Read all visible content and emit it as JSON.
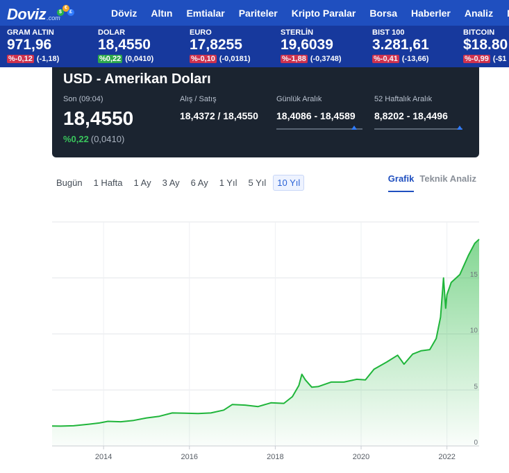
{
  "nav": {
    "logo": "Doviz",
    "logo_sub": ".com",
    "items": [
      "Döviz",
      "Altın",
      "Emtialar",
      "Pariteler",
      "Kripto Paralar",
      "Borsa",
      "Haberler",
      "Analiz",
      "M"
    ]
  },
  "ticker": [
    {
      "name": "GRAM ALTIN",
      "value": "971,96",
      "pct": "%-0,12",
      "abs": "(-1,18)",
      "dir": "neg"
    },
    {
      "name": "DOLAR",
      "value": "18,4550",
      "pct": "%0,22",
      "abs": "(0,0410)",
      "dir": "pos"
    },
    {
      "name": "EURO",
      "value": "17,8255",
      "pct": "%-0,10",
      "abs": "(-0,0181)",
      "dir": "neg"
    },
    {
      "name": "STERLİN",
      "value": "19,6039",
      "pct": "%-1,88",
      "abs": "(-0,3748)",
      "dir": "neg"
    },
    {
      "name": "BIST 100",
      "value": "3.281,61",
      "pct": "%-0,41",
      "abs": "(-13,66)",
      "dir": "neg"
    },
    {
      "name": "BITCOIN",
      "value": "$18.80",
      "pct": "%-0,99",
      "abs": "(-$1",
      "dir": "neg"
    }
  ],
  "card": {
    "title": "USD - Amerikan Doları",
    "last_label": "Son (09:04)",
    "last_value": "18,4550",
    "change_pct": "%0,22",
    "change_abs": "(0,0410)",
    "bidask_label": "Alış / Satış",
    "bidask_value": "18,4372 / 18,4550",
    "daily_label": "Günlük Aralık",
    "daily_value": "18,4086 - 18,4589",
    "weekly_label": "52 Haftalık Aralık",
    "weekly_value": "8,8202 - 18,4496",
    "daily_marker": 0.9,
    "weekly_marker": 0.97
  },
  "periods": {
    "items": [
      "Bugün",
      "1 Hafta",
      "1 Ay",
      "3 Ay",
      "6 Ay",
      "1 Yıl",
      "5 Yıl",
      "10 Yıl"
    ],
    "active": "10 Yıl"
  },
  "view_tabs": {
    "items": [
      "Grafik",
      "Teknik Analiz"
    ],
    "active": "Grafik"
  },
  "colors": {
    "nav_bg": "#1f4fbf",
    "ticker_bg": "#17399d",
    "card_bg": "#1b2430",
    "line": "#1fb53a",
    "negative": "#d9324a",
    "positive": "#2da84c"
  },
  "chart_data": {
    "type": "area",
    "title": "",
    "xlabel": "",
    "ylabel": "",
    "xlim": [
      2012.8,
      2022.75
    ],
    "ylim": [
      0,
      20
    ],
    "x_ticks": [
      2014,
      2016,
      2018,
      2020,
      2022
    ],
    "y_ticks": [
      0,
      5,
      10,
      15
    ],
    "grid": true,
    "series": [
      {
        "x": [
          2012.8,
          2013.0,
          2013.3,
          2013.6,
          2013.9,
          2014.1,
          2014.4,
          2014.7,
          2015.0,
          2015.3,
          2015.6,
          2015.9,
          2016.2,
          2016.5,
          2016.8,
          2017.0,
          2017.3,
          2017.6,
          2017.9,
          2018.2,
          2018.4,
          2018.55,
          2018.62,
          2018.7,
          2018.85,
          2019.0,
          2019.3,
          2019.6,
          2019.9,
          2020.1,
          2020.3,
          2020.6,
          2020.85,
          2021.0,
          2021.2,
          2021.4,
          2021.6,
          2021.75,
          2021.85,
          2021.92,
          2021.97,
          2022.0,
          2022.1,
          2022.3,
          2022.5,
          2022.65,
          2022.75
        ],
        "y": [
          1.78,
          1.77,
          1.8,
          1.92,
          2.05,
          2.2,
          2.16,
          2.28,
          2.5,
          2.65,
          2.95,
          2.92,
          2.9,
          2.95,
          3.2,
          3.7,
          3.65,
          3.52,
          3.85,
          3.8,
          4.4,
          5.4,
          6.4,
          5.9,
          5.25,
          5.3,
          5.7,
          5.7,
          5.95,
          5.9,
          6.85,
          7.5,
          8.1,
          7.3,
          8.2,
          8.5,
          8.6,
          9.6,
          11.5,
          15.0,
          12.3,
          13.5,
          14.6,
          15.3,
          17.0,
          18.1,
          18.45
        ]
      }
    ]
  }
}
